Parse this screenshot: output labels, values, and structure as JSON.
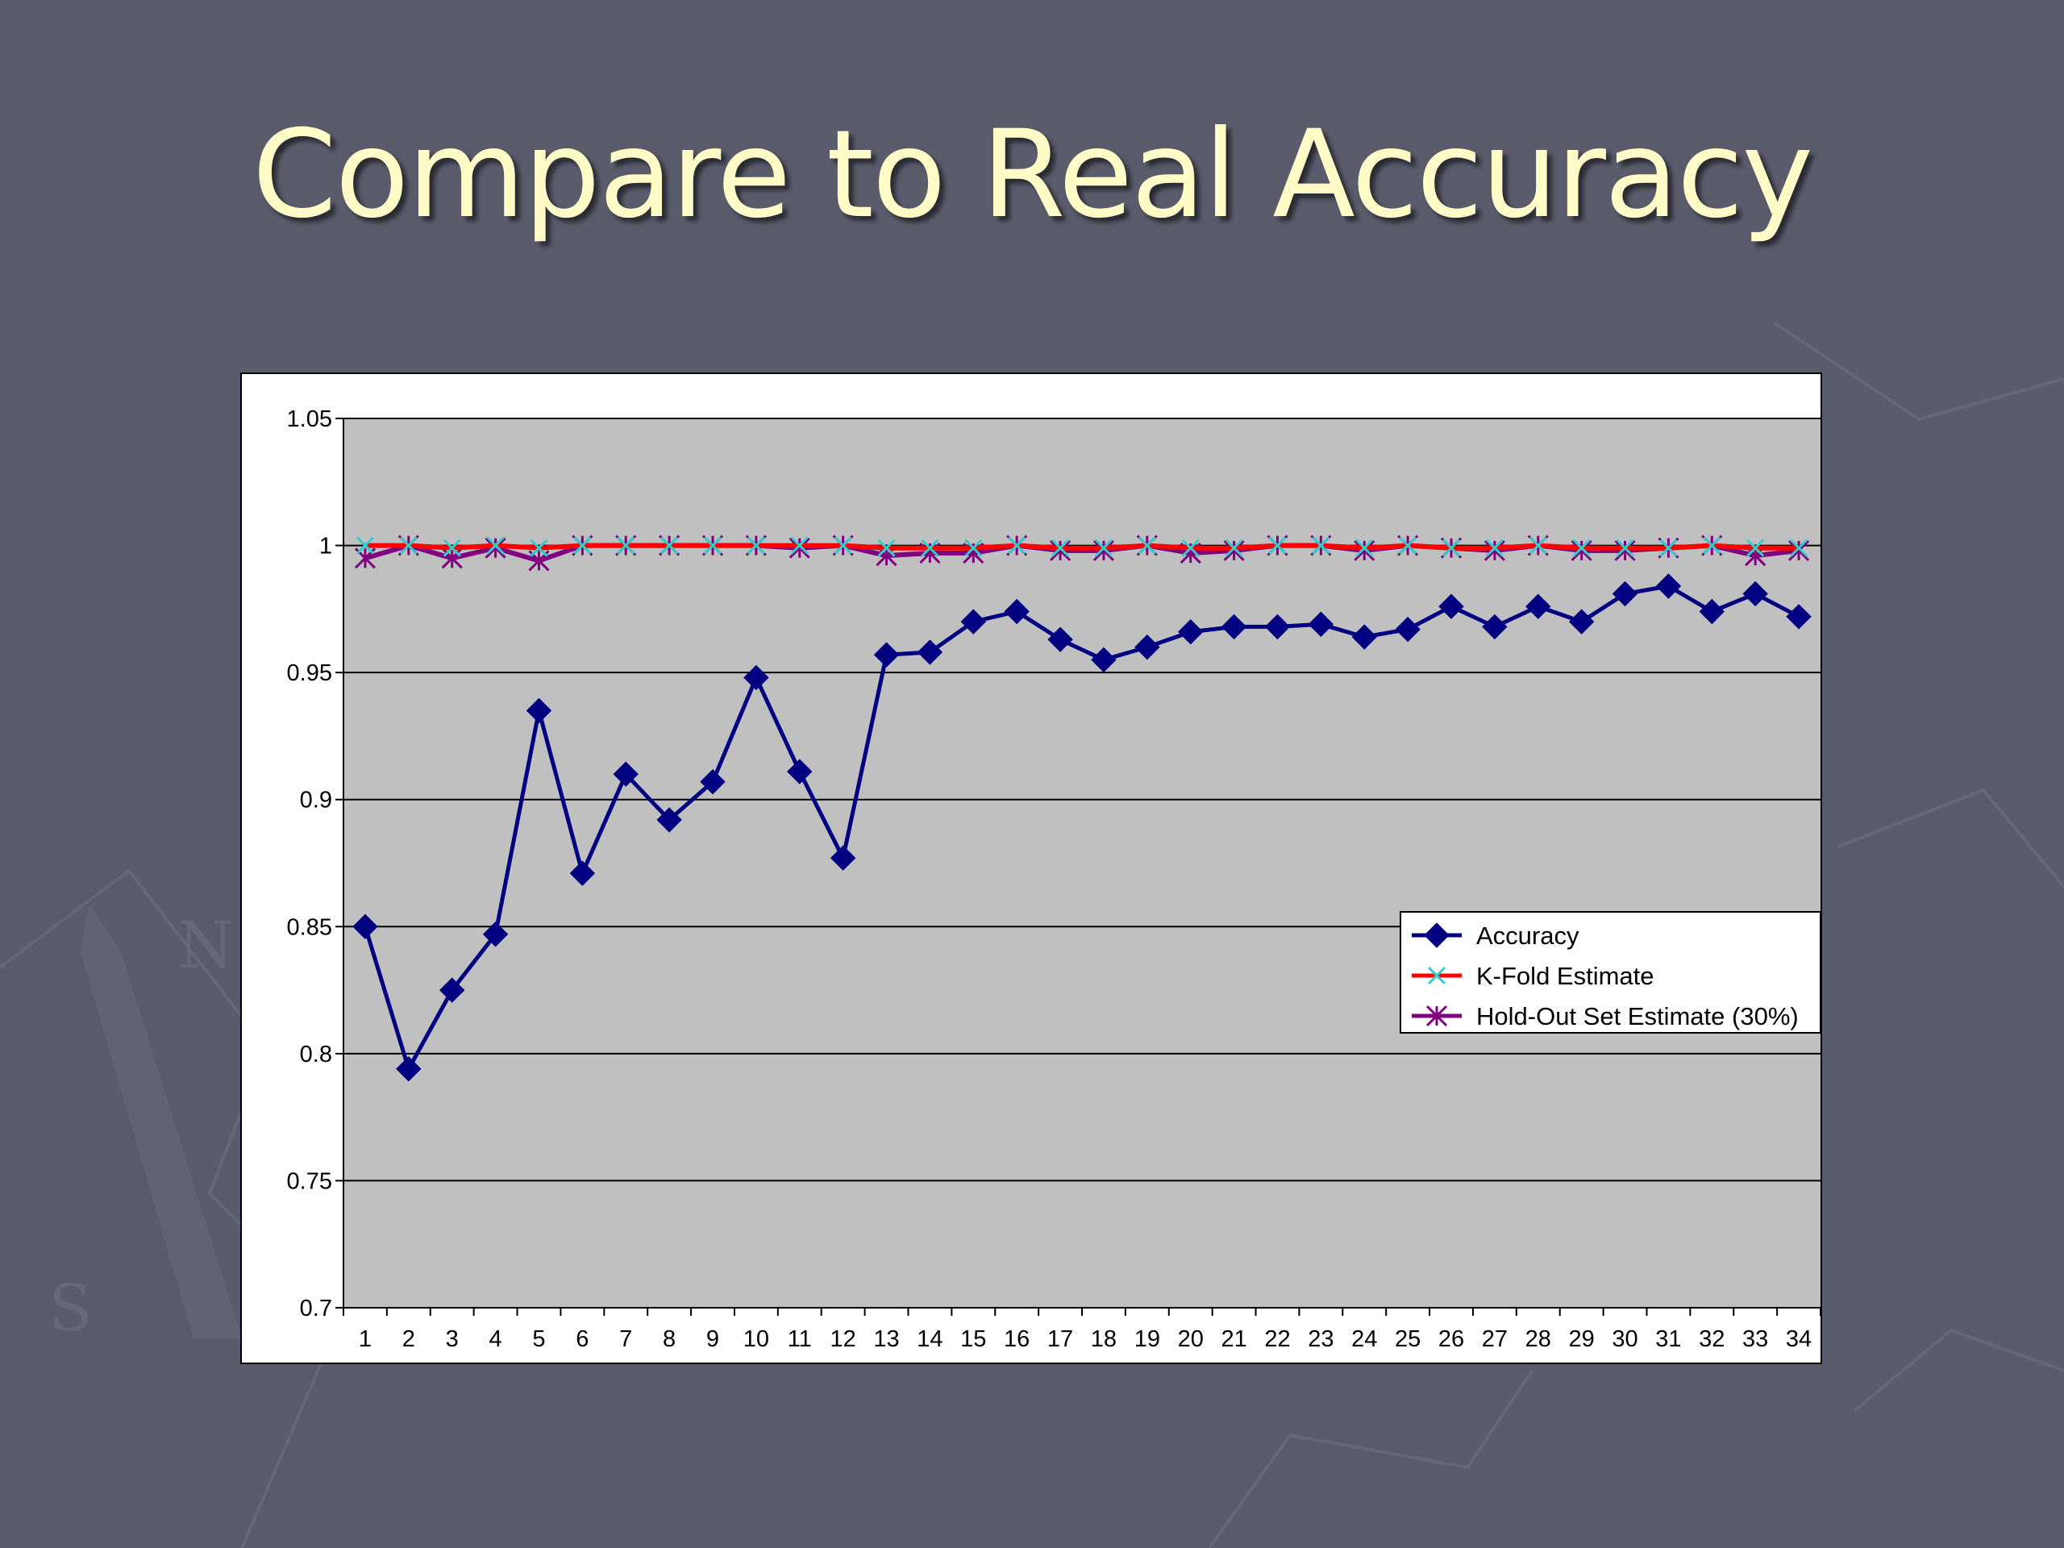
{
  "slide": {
    "title": "Compare to Real Accuracy",
    "background_color": "#5a5c6c",
    "title_color": "#fffcc8"
  },
  "chart_data": {
    "type": "line",
    "title": "",
    "xlabel": "",
    "ylabel": "",
    "ylim": [
      0.7,
      1.05
    ],
    "yticks": [
      "0.7",
      "0.75",
      "0.8",
      "0.85",
      "0.9",
      "0.95",
      "1",
      "1.05"
    ],
    "x": [
      1,
      2,
      3,
      4,
      5,
      6,
      7,
      8,
      9,
      10,
      11,
      12,
      13,
      14,
      15,
      16,
      17,
      18,
      19,
      20,
      21,
      22,
      23,
      24,
      25,
      26,
      27,
      28,
      29,
      30,
      31,
      32,
      33,
      34
    ],
    "grid": true,
    "plot_background": "#c0c0c0",
    "legend_position": "right",
    "series": [
      {
        "name": "Accuracy",
        "color": "#000080",
        "marker": "diamond",
        "values": [
          0.85,
          0.794,
          0.825,
          0.847,
          0.935,
          0.871,
          0.91,
          0.892,
          0.907,
          0.948,
          0.911,
          0.877,
          0.957,
          0.958,
          0.97,
          0.974,
          0.963,
          0.955,
          0.96,
          0.966,
          0.968,
          0.968,
          0.969,
          0.964,
          0.967,
          0.976,
          0.968,
          0.976,
          0.97,
          0.981,
          0.984,
          0.974,
          0.981,
          0.972
        ]
      },
      {
        "name": "K-Fold Estimate",
        "color": "#ff0000",
        "marker": "x",
        "marker_color": "#33cccc",
        "values": [
          1,
          1,
          0.999,
          1,
          0.999,
          1,
          1,
          1,
          1,
          1,
          1,
          1,
          0.999,
          0.999,
          0.999,
          1,
          0.999,
          0.999,
          1,
          0.999,
          0.999,
          1,
          1,
          0.999,
          1,
          0.999,
          0.999,
          1,
          0.999,
          0.999,
          0.999,
          1,
          0.999,
          0.999
        ]
      },
      {
        "name": "Hold-Out Set Estimate (30%)",
        "color": "#800080",
        "marker": "asterisk",
        "values": [
          0.995,
          1,
          0.995,
          0.999,
          0.994,
          1,
          1,
          1,
          1,
          1,
          0.999,
          1,
          0.996,
          0.997,
          0.997,
          1,
          0.998,
          0.998,
          1,
          0.997,
          0.998,
          1,
          1,
          0.998,
          1,
          0.999,
          0.998,
          1,
          0.998,
          0.998,
          0.999,
          1,
          0.996,
          0.998
        ]
      }
    ]
  }
}
